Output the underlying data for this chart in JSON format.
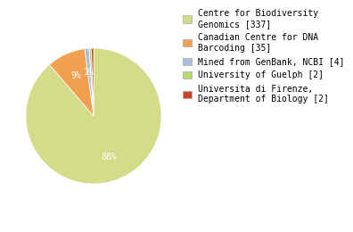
{
  "labels": [
    "Centre for Biodiversity\nGenomics [337]",
    "Canadian Centre for DNA\nBarcoding [35]",
    "Mined from GenBank, NCBI [4]",
    "University of Guelph [2]",
    "Universita di Firenze,\nDepartment of Biology [2]"
  ],
  "values": [
    337,
    35,
    4,
    2,
    2
  ],
  "colors": [
    "#d4dc8a",
    "#f0a050",
    "#a8c0d8",
    "#b8d870",
    "#cc4422"
  ],
  "background_color": "#ffffff",
  "pct_fontsize": 7,
  "legend_fontsize": 7
}
